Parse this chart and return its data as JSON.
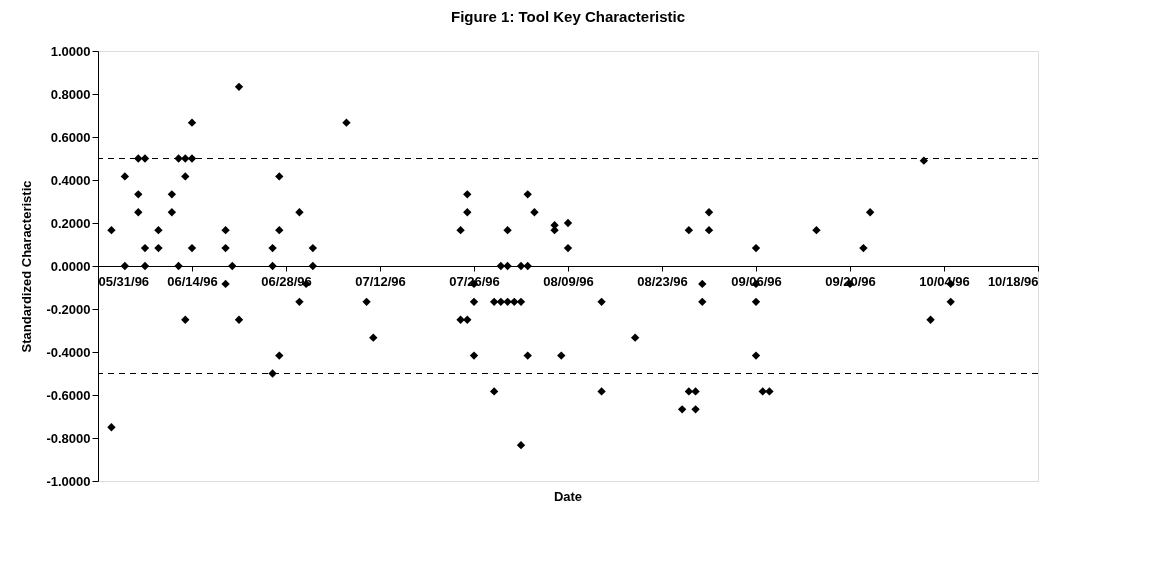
{
  "chart_data": {
    "type": "scatter",
    "title": "Figure 1: Tool Key Characteristic",
    "xlabel": "Date",
    "ylabel": "Standardized Characteristic",
    "x": [
      "1996-06-02",
      "1996-06-02",
      "1996-06-04",
      "1996-06-04",
      "1996-06-06",
      "1996-06-06",
      "1996-06-06",
      "1996-06-07",
      "1996-06-07",
      "1996-06-07",
      "1996-06-09",
      "1996-06-09",
      "1996-06-11",
      "1996-06-11",
      "1996-06-12",
      "1996-06-12",
      "1996-06-13",
      "1996-06-13",
      "1996-06-13",
      "1996-06-14",
      "1996-06-14",
      "1996-06-14",
      "1996-06-19",
      "1996-06-19",
      "1996-06-19",
      "1996-06-20",
      "1996-06-21",
      "1996-06-21",
      "1996-06-26",
      "1996-06-26",
      "1996-06-26",
      "1996-06-27",
      "1996-06-27",
      "1996-06-27",
      "1996-06-30",
      "1996-06-30",
      "1996-07-01",
      "1996-07-02",
      "1996-07-02",
      "1996-07-07",
      "1996-07-10",
      "1996-07-11",
      "1996-07-24",
      "1996-07-25",
      "1996-07-25",
      "1996-07-24",
      "1996-07-25",
      "1996-07-26",
      "1996-07-26",
      "1996-07-26",
      "1996-07-29",
      "1996-07-30",
      "1996-07-31",
      "1996-07-31",
      "1996-07-29",
      "1996-07-30",
      "1996-07-31",
      "1996-08-01",
      "1996-08-02",
      "1996-08-02",
      "1996-08-03",
      "1996-08-02",
      "1996-08-03",
      "1996-08-03",
      "1996-08-04",
      "1996-08-07",
      "1996-08-07",
      "1996-08-08",
      "1996-08-09",
      "1996-08-09",
      "1996-08-14",
      "1996-08-14",
      "1996-08-19",
      "1996-08-27",
      "1996-08-26",
      "1996-08-27",
      "1996-08-28",
      "1996-08-28",
      "1996-08-29",
      "1996-08-29",
      "1996-08-30",
      "1996-08-30",
      "1996-09-06",
      "1996-09-06",
      "1996-09-06",
      "1996-09-06",
      "1996-09-07",
      "1996-09-08",
      "1996-09-15",
      "1996-09-20",
      "1996-09-22",
      "1996-09-23",
      "1996-10-01",
      "1996-10-02",
      "1996-10-05",
      "1996-10-05"
    ],
    "series": [
      {
        "color": "#000000",
        "values": [
          0.1667,
          -0.75,
          0.4167,
          0,
          0.3333,
          0.25,
          0.5,
          0.5,
          0.0833,
          0,
          0.1667,
          0.0833,
          0.3333,
          0.25,
          0.5,
          0,
          0.4167,
          -0.25,
          0.5,
          0.5,
          0.6667,
          0.0833,
          0.1667,
          0.0833,
          -0.0833,
          0,
          0.8333,
          -0.25,
          0.0833,
          0,
          -0.5,
          0.4167,
          0.1667,
          -0.4167,
          0.25,
          -0.1667,
          -0.0833,
          0.0833,
          0,
          0.6667,
          -0.1667,
          -0.3333,
          0.1667,
          0.3333,
          0.25,
          -0.25,
          -0.25,
          -0.0833,
          -0.1667,
          -0.4167,
          -0.5833,
          0,
          0,
          0.1667,
          -0.1667,
          -0.1667,
          -0.1667,
          -0.1667,
          -0.1667,
          0,
          0,
          -0.8333,
          0.3333,
          -0.4167,
          0.25,
          0.19,
          0.1667,
          -0.4167,
          0.2,
          0.0833,
          -0.1667,
          -0.5833,
          -0.3333,
          0.1667,
          -0.6667,
          -0.5833,
          -0.6667,
          -0.5833,
          -0.1667,
          -0.0833,
          0.25,
          0.1667,
          0.0833,
          -0.0833,
          -0.1667,
          -0.4167,
          -0.5833,
          -0.5833,
          0.1667,
          -0.0833,
          0.0833,
          0.25,
          0.49,
          -0.25,
          -0.0833,
          -0.1667
        ]
      }
    ],
    "xlim": [
      "1996-05-31",
      "1996-10-18"
    ],
    "xticks": [
      {
        "value": "1996-05-31",
        "label": "05/31/96"
      },
      {
        "value": "1996-06-14",
        "label": "06/14/96"
      },
      {
        "value": "1996-06-28",
        "label": "06/28/96"
      },
      {
        "value": "1996-07-12",
        "label": "07/12/96"
      },
      {
        "value": "1996-07-26",
        "label": "07/26/96"
      },
      {
        "value": "1996-08-09",
        "label": "08/09/96"
      },
      {
        "value": "1996-08-23",
        "label": "08/23/96"
      },
      {
        "value": "1996-09-06",
        "label": "09/06/96"
      },
      {
        "value": "1996-09-20",
        "label": "09/20/96"
      },
      {
        "value": "1996-10-04",
        "label": "10/04/96"
      },
      {
        "value": "1996-10-18",
        "label": "10/18/96"
      }
    ],
    "ylim": [
      -1,
      1
    ],
    "yticks": [
      {
        "value": -1,
        "label": "-1.0000"
      },
      {
        "value": -0.8,
        "label": "-0.8000"
      },
      {
        "value": -0.6,
        "label": "-0.6000"
      },
      {
        "value": -0.4,
        "label": "-0.4000"
      },
      {
        "value": -0.2,
        "label": "-0.2000"
      },
      {
        "value": 0,
        "label": "0.0000"
      },
      {
        "value": 0.2,
        "label": "0.2000"
      },
      {
        "value": 0.4,
        "label": "0.4000"
      },
      {
        "value": 0.6,
        "label": "0.6000"
      },
      {
        "value": 0.8,
        "label": "0.8000"
      },
      {
        "value": 1,
        "label": "1.0000"
      }
    ],
    "ref_lines": [
      {
        "axis": "y",
        "value": 0.5,
        "line_style": "dashed",
        "color": "#000000"
      },
      {
        "axis": "y",
        "value": -0.5,
        "line_style": "dashed",
        "color": "#000000"
      }
    ],
    "grid": false,
    "legend": false,
    "marker": "diamond"
  }
}
